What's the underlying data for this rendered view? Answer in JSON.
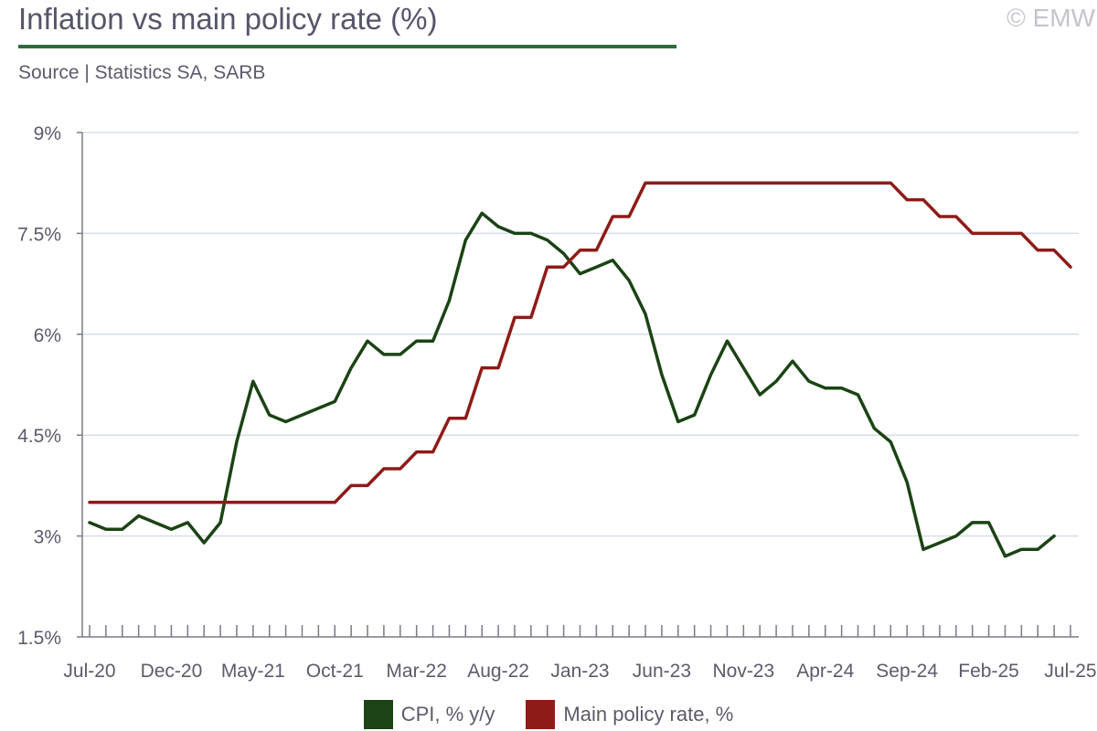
{
  "header": {
    "title": "Inflation vs main policy rate (%)",
    "source": "Source | Statistics SA, SARB",
    "copyright": "© EMW"
  },
  "colors": {
    "cpi": "#1b4314",
    "rate": "#8e1b17",
    "accent_rule": "#2f6b3a",
    "grid": "#d6dde6",
    "axis": "#7a7a86"
  },
  "chart_data": {
    "type": "line",
    "title": "Inflation vs main policy rate (%)",
    "xlabel": "",
    "ylabel": "",
    "ylim": [
      1.5,
      9
    ],
    "yticks": [
      {
        "value": 1.5,
        "label": "1.5%"
      },
      {
        "value": 3,
        "label": "3%"
      },
      {
        "value": 4.5,
        "label": "4.5%"
      },
      {
        "value": 6,
        "label": "6%"
      },
      {
        "value": 7.5,
        "label": "7.5%"
      },
      {
        "value": 9,
        "label": "9%"
      }
    ],
    "x_start": "Jul-20",
    "x_end": "Jul-25",
    "xticks": [
      "Jul-20",
      "Dec-20",
      "May-21",
      "Oct-21",
      "Mar-22",
      "Aug-22",
      "Jan-23",
      "Jun-23",
      "Nov-23",
      "Apr-24",
      "Sep-24",
      "Feb-25",
      "Jul-25"
    ],
    "grid": true,
    "legend_position": "bottom",
    "series": [
      {
        "name": "CPI, % y/y",
        "color": "#1b4314",
        "start": "Jul-20",
        "values": [
          3.2,
          3.1,
          3.1,
          3.3,
          3.2,
          3.1,
          3.2,
          2.9,
          3.2,
          4.4,
          5.3,
          4.8,
          4.7,
          4.8,
          4.9,
          5.0,
          5.5,
          5.9,
          5.7,
          5.7,
          5.9,
          5.9,
          6.5,
          7.4,
          7.8,
          7.6,
          7.5,
          7.5,
          7.4,
          7.2,
          6.9,
          7.0,
          7.1,
          6.8,
          6.3,
          5.4,
          4.7,
          4.8,
          5.4,
          5.9,
          5.5,
          5.1,
          5.3,
          5.6,
          5.3,
          5.2,
          5.2,
          5.1,
          4.6,
          4.4,
          3.8,
          2.8,
          2.9,
          3.0,
          3.2,
          3.2,
          2.7,
          2.8,
          2.8,
          3.0
        ]
      },
      {
        "name": "Main policy rate, %",
        "color": "#8e1b17",
        "start": "Jul-20",
        "values": [
          3.5,
          3.5,
          3.5,
          3.5,
          3.5,
          3.5,
          3.5,
          3.5,
          3.5,
          3.5,
          3.5,
          3.5,
          3.5,
          3.5,
          3.5,
          3.5,
          3.75,
          3.75,
          4.0,
          4.0,
          4.25,
          4.25,
          4.75,
          4.75,
          5.5,
          5.5,
          6.25,
          6.25,
          7.0,
          7.0,
          7.25,
          7.25,
          7.75,
          7.75,
          8.25,
          8.25,
          8.25,
          8.25,
          8.25,
          8.25,
          8.25,
          8.25,
          8.25,
          8.25,
          8.25,
          8.25,
          8.25,
          8.25,
          8.25,
          8.25,
          8.0,
          8.0,
          7.75,
          7.75,
          7.5,
          7.5,
          7.5,
          7.5,
          7.25,
          7.25,
          7.0
        ]
      }
    ]
  }
}
